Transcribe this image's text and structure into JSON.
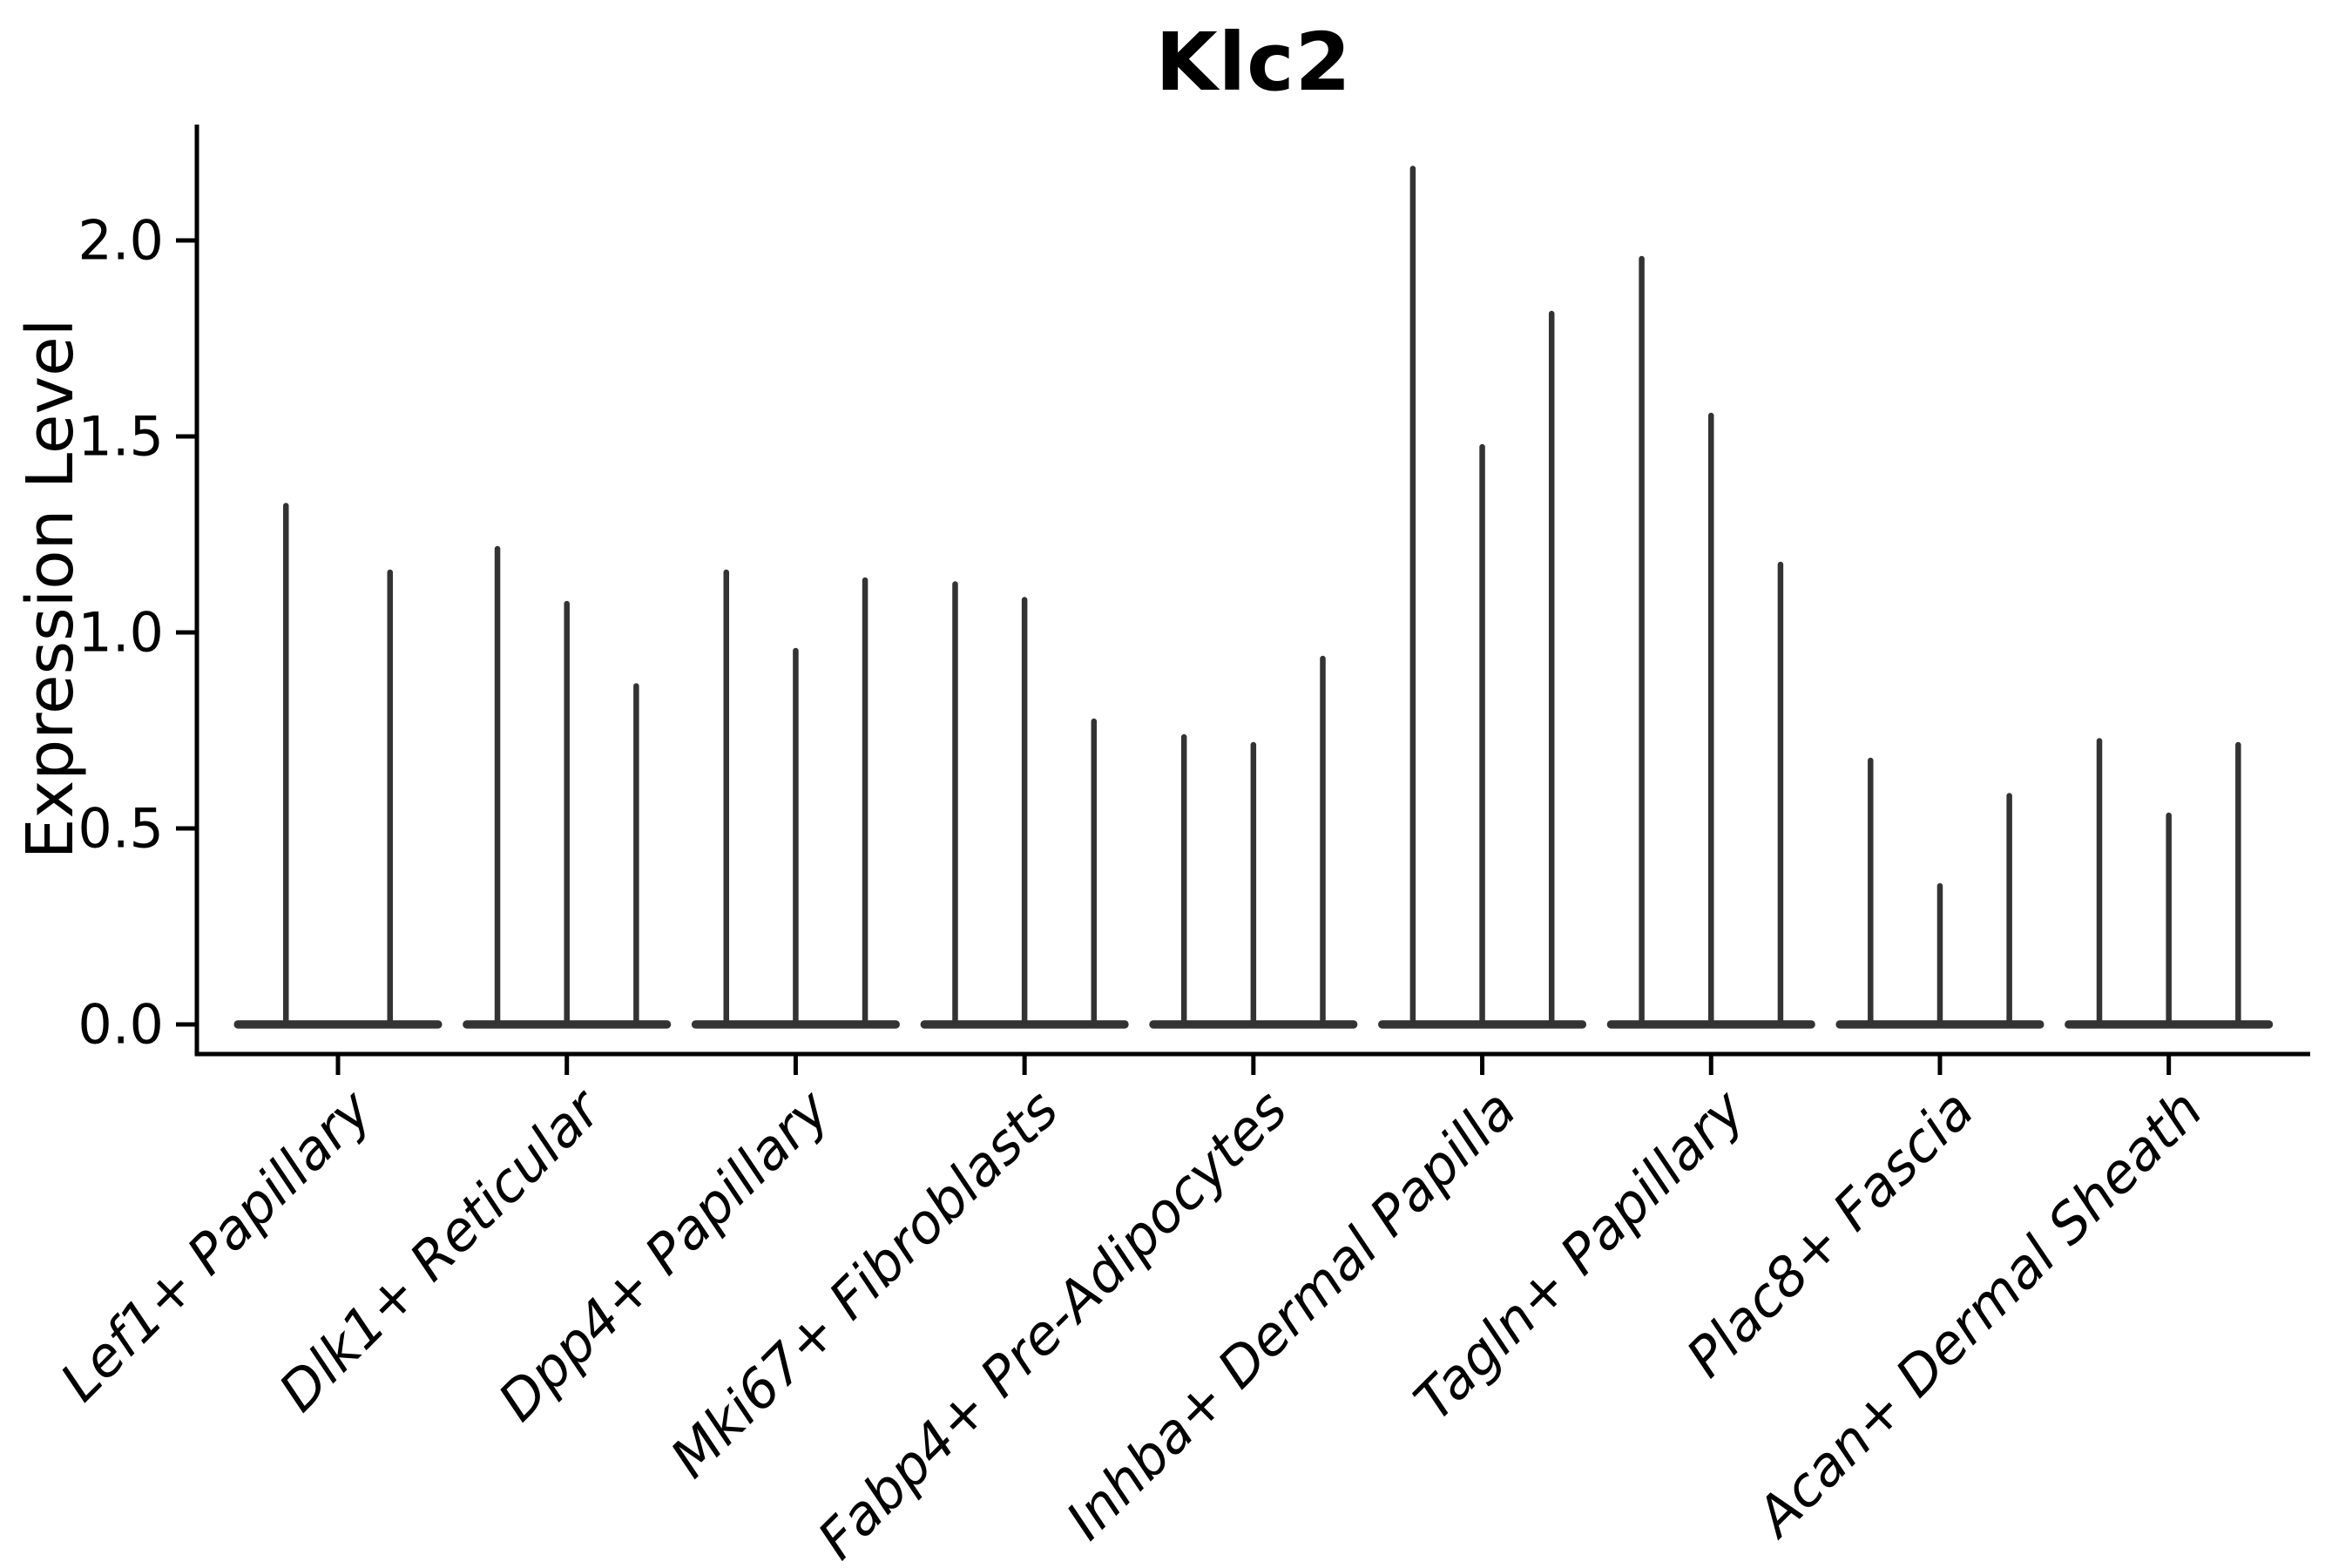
{
  "chart_data": {
    "type": "violin",
    "title": "Klc2",
    "ylabel": "Expression Level",
    "xlabel": "",
    "ylim": [
      0,
      2.3
    ],
    "yticks": [
      "0.0",
      "0.5",
      "1.0",
      "1.5",
      "2.0"
    ],
    "ytick_values": [
      0.0,
      0.5,
      1.0,
      1.5,
      2.0
    ],
    "grid": false,
    "legend": null,
    "violin_color": "#333333",
    "axis_color": "#000000",
    "categories": [
      {
        "label": "Lef1+ Papillary",
        "peaks": [
          1.33,
          1.16
        ]
      },
      {
        "label": "Dlk1+ Reticular",
        "peaks": [
          1.22,
          1.08,
          0.87
        ]
      },
      {
        "label": "Dpp4+ Papillary",
        "peaks": [
          1.16,
          0.96,
          1.14
        ]
      },
      {
        "label": "Mki67+ Fibroblasts",
        "peaks": [
          1.13,
          1.09,
          0.78
        ]
      },
      {
        "label": "Fabp4+ Pre-Adipocytes",
        "peaks": [
          0.74,
          0.72,
          0.94
        ]
      },
      {
        "label": "Inhba+ Dermal Papilla",
        "peaks": [
          2.19,
          1.48,
          1.82
        ]
      },
      {
        "label": "Tagln+ Papillary",
        "peaks": [
          1.96,
          1.56,
          1.18
        ]
      },
      {
        "label": "Plac8+ Fascia",
        "peaks": [
          0.68,
          0.36,
          0.59
        ]
      },
      {
        "label": "Acan+ Dermal Sheath",
        "peaks": [
          0.73,
          0.54,
          0.72
        ]
      }
    ]
  }
}
